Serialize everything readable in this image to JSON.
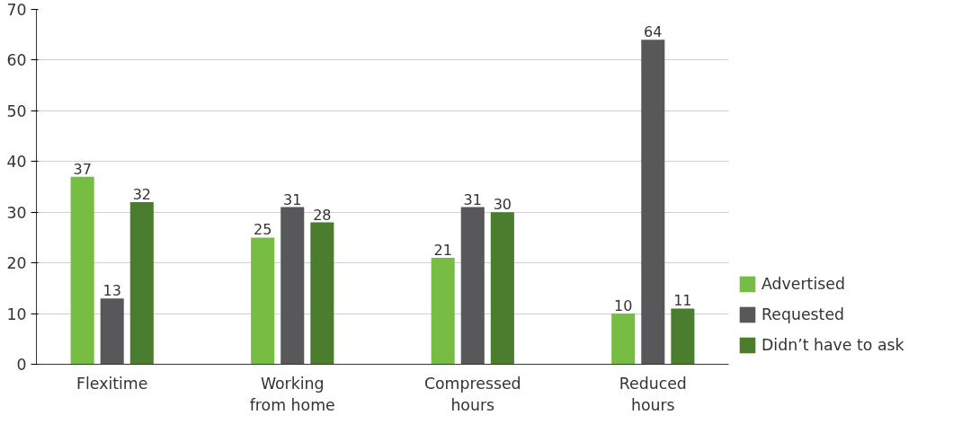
{
  "chart_data": {
    "type": "bar",
    "categories": [
      "Flexitime",
      "Working\nfrom home",
      "Compressed\nhours",
      "Reduced\nhours"
    ],
    "series": [
      {
        "name": "Advertised",
        "color": "#77bc43",
        "values": [
          37,
          25,
          21,
          10
        ]
      },
      {
        "name": "Requested",
        "color": "#58585a",
        "values": [
          13,
          31,
          31,
          64
        ]
      },
      {
        "name": "Didn’t have to ask",
        "color": "#4a7d2e",
        "values": [
          32,
          28,
          30,
          11
        ]
      }
    ],
    "ylim": [
      0,
      70
    ],
    "yticks": [
      0,
      10,
      20,
      30,
      40,
      50,
      60,
      70
    ],
    "grid": "y",
    "legend": "right",
    "data_labels": true
  }
}
